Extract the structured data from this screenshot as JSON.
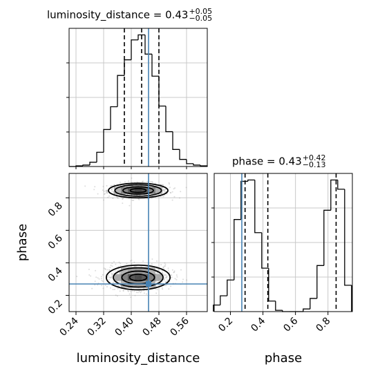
{
  "chart_data": [
    {
      "type": "histogram",
      "parameter": "luminosity_distance",
      "title": {
        "name": "luminosity_distance",
        "eq": " = ",
        "value": "0.43",
        "plus": "+0.05",
        "minus": "−0.05"
      },
      "xlim": [
        0.22,
        0.62
      ],
      "bin_edges": [
        0.22,
        0.24,
        0.26,
        0.28,
        0.3,
        0.32,
        0.34,
        0.36,
        0.38,
        0.4,
        0.42,
        0.44,
        0.46,
        0.48,
        0.5,
        0.52,
        0.54,
        0.56,
        0.58,
        0.6,
        0.62
      ],
      "counts": [
        0,
        1,
        2,
        6,
        20,
        52,
        84,
        128,
        150,
        178,
        185,
        158,
        127,
        85,
        49,
        24,
        10,
        4,
        2,
        1
      ],
      "quantiles": [
        0.38,
        0.43,
        0.48
      ],
      "truth": 0.45
    },
    {
      "type": "histogram",
      "parameter": "phase",
      "title": {
        "name": "phase",
        "eq": " = ",
        "value": "0.43",
        "plus": "+0.42",
        "minus": "−0.13"
      },
      "xlim": [
        0.1,
        0.95
      ],
      "bin_edges": [
        0.095,
        0.1375,
        0.18,
        0.2225,
        0.265,
        0.3075,
        0.35,
        0.3925,
        0.435,
        0.4775,
        0.52,
        0.5625,
        0.605,
        0.6475,
        0.69,
        0.7325,
        0.775,
        0.8175,
        0.86,
        0.9025,
        0.945
      ],
      "counts": [
        5,
        12,
        24,
        70,
        99,
        100,
        60,
        33,
        8,
        1,
        0,
        0,
        0,
        2,
        10,
        35,
        77,
        100,
        93,
        20
      ],
      "quantiles": [
        0.29,
        0.43,
        0.85
      ],
      "truth": 0.27
    },
    {
      "type": "scatter",
      "subtype": "2d-density-contour",
      "xlabel": "luminosity_distance",
      "ylabel": "phase",
      "xlim": [
        0.22,
        0.62
      ],
      "ylim": [
        0.1,
        0.95
      ],
      "modes": [
        {
          "x": 0.42,
          "y": 0.845,
          "sx": 0.042,
          "sy": 0.022
        },
        {
          "x": 0.42,
          "y": 0.31,
          "sx": 0.045,
          "sy": 0.037
        }
      ],
      "truth": {
        "x": 0.45,
        "y": 0.27
      }
    }
  ],
  "axes": {
    "x_dist_ticks": [
      "0.24",
      "0.32",
      "0.40",
      "0.48",
      "0.56"
    ],
    "x_dist_tick_values": [
      0.24,
      0.32,
      0.4,
      0.48,
      0.56
    ],
    "phase_ticks": [
      "0.2",
      "0.4",
      "0.6",
      "0.8"
    ],
    "phase_tick_values": [
      0.2,
      0.4,
      0.6,
      0.8
    ],
    "xlabel_left": "luminosity_distance",
    "xlabel_right": "phase",
    "ylabel": "phase"
  },
  "colors": {
    "truth": "#4682b4",
    "hist": "#000000",
    "grid": "#c8c8c8"
  }
}
